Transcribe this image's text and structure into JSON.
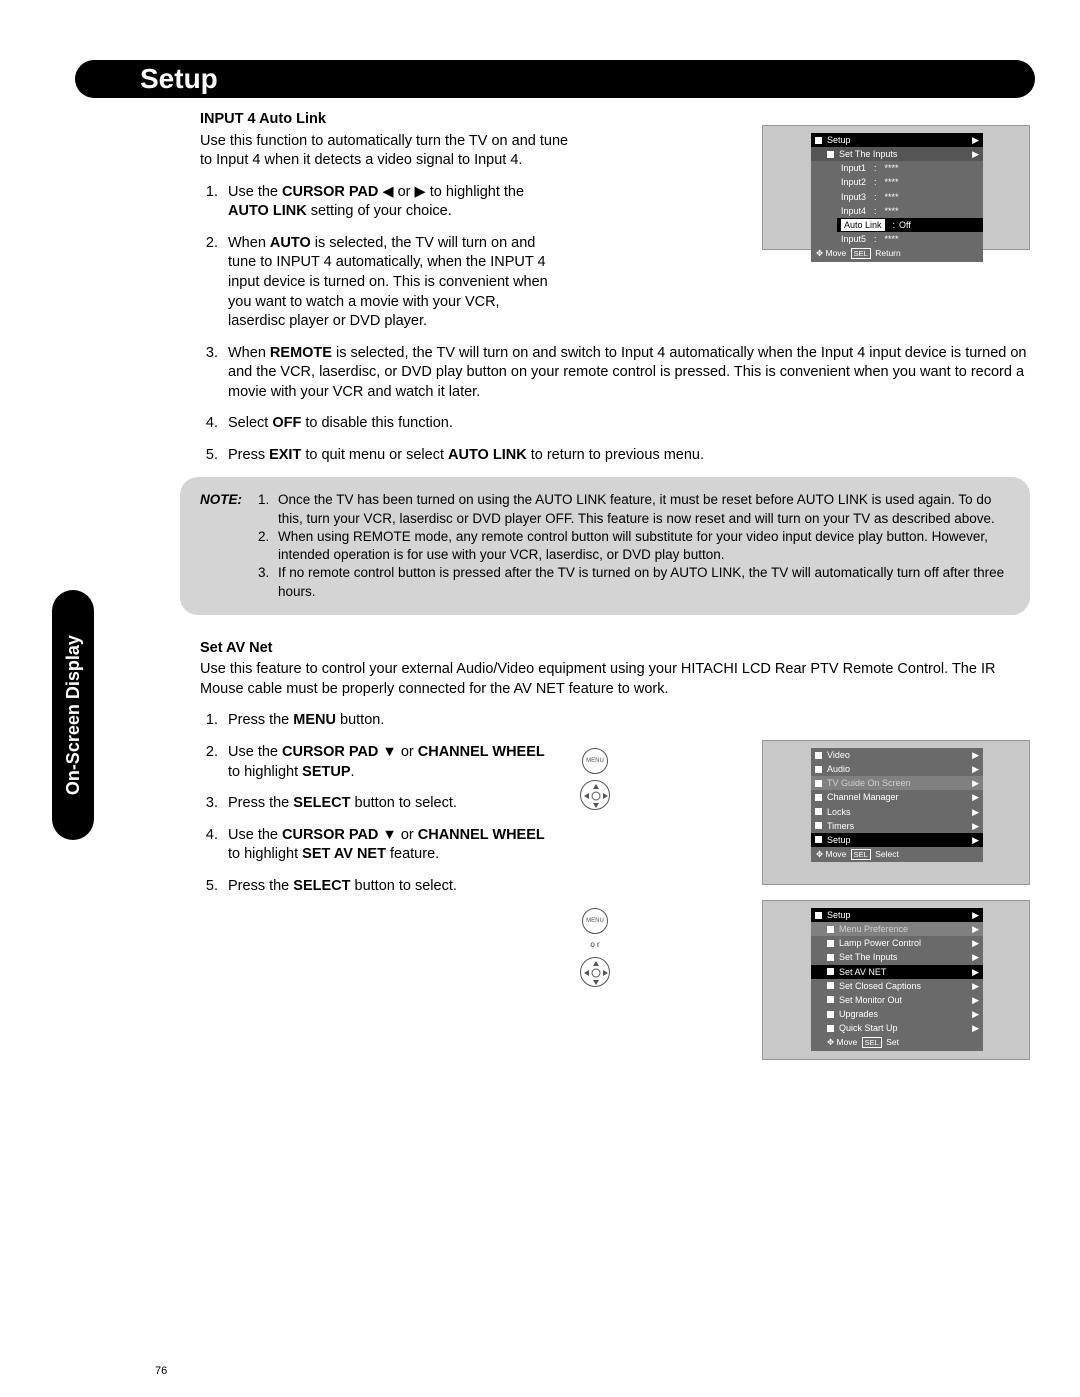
{
  "header": {
    "title": "Setup"
  },
  "sidetab": {
    "label": "On-Screen Display"
  },
  "page_number": "76",
  "section1": {
    "title": "INPUT 4 Auto Link",
    "intro": "Use this function to automatically turn the TV on and tune to Input 4 when it detects a video signal to Input 4.",
    "items": [
      {
        "n": "1.",
        "pre": "Use the ",
        "b1": "CURSOR PAD",
        "mid": " ◀ or ▶ to highlight the ",
        "b2": "AUTO LINK",
        "post": " setting of your choice."
      },
      {
        "n": "2.",
        "pre": "When ",
        "b1": "AUTO",
        "post": " is selected, the TV will turn on and tune to INPUT 4 automatically, when the INPUT 4 input device is turned on. This is convenient when you want to watch a movie with your VCR, laserdisc player or DVD player."
      },
      {
        "n": "3.",
        "pre": "When ",
        "b1": "REMOTE",
        "post": " is selected, the TV will turn on and switch to Input 4 automatically when the Input 4 input device is turned on and the VCR, laserdisc, or DVD play button on your remote control is pressed. This is convenient when you want to record a movie with your VCR and watch it later."
      },
      {
        "n": "4.",
        "pre": "Select ",
        "b1": "OFF",
        "post": " to disable this function."
      },
      {
        "n": "5.",
        "pre": "Press ",
        "b1": "EXIT",
        "mid": " to quit menu or select ",
        "b2": "AUTO LINK",
        "post": " to return to previous menu."
      }
    ]
  },
  "note": {
    "label": "NOTE:",
    "items": [
      {
        "n": "1.",
        "text": "Once the TV has been turned on using the AUTO LINK feature, it must be reset before AUTO LINK is used again. To do this, turn your VCR, laserdisc or DVD player OFF. This feature is now reset and will turn on your TV as described above."
      },
      {
        "n": "2.",
        "text": "When using REMOTE mode, any remote control button will substitute for your video input device play button. However, intended operation is for use with your VCR, laserdisc, or DVD play button."
      },
      {
        "n": "3.",
        "text": "If no remote control button is pressed after the TV is turned on by AUTO LINK, the TV will automatically turn off after three hours."
      }
    ]
  },
  "section2": {
    "title": "Set AV Net",
    "intro": "Use this feature to control your external Audio/Video equipment using your HITACHI LCD Rear PTV Remote Control.  The IR Mouse cable must be properly connected for the AV NET feature to work.",
    "items": [
      {
        "n": "1.",
        "pre": "Press the ",
        "b1": "MENU",
        "post": " button."
      },
      {
        "n": "2.",
        "pre": "Use the ",
        "b1": "CURSOR PAD",
        "mid": " ▼ or ",
        "b2": "CHANNEL WHEEL",
        "mid2": " to highlight ",
        "b3": "SETUP",
        "post": "."
      },
      {
        "n": "3.",
        "pre": "Press the ",
        "b1": "SELECT",
        "post": " button to select."
      },
      {
        "n": "4.",
        "pre": "Use the ",
        "b1": "CURSOR PAD",
        "mid": " ▼ or ",
        "b2": "CHANNEL WHEEL",
        "mid2": " to highlight ",
        "b3": "SET AV NET",
        "post": " feature."
      },
      {
        "n": "5.",
        "pre": "Press the ",
        "b1": "SELECT",
        "post": " button to select."
      }
    ]
  },
  "osd1": {
    "title": "Setup",
    "sub": "Set The Inputs",
    "rows": [
      {
        "l": "Input1",
        "v": "****"
      },
      {
        "l": "Input2",
        "v": "****"
      },
      {
        "l": "Input3",
        "v": "****"
      },
      {
        "l": "Input4",
        "v": "****"
      }
    ],
    "hl_label": "Auto Link",
    "hl_value": "Off",
    "row5": {
      "l": "Input5",
      "v": "****"
    },
    "hint_move": "Move",
    "hint_sel": "SEL",
    "hint_ret": "Return"
  },
  "osd2": {
    "rows": [
      "Video",
      "Audio",
      "TV Guide On Screen",
      "Channel Manager",
      "Locks",
      "Timers",
      "Setup"
    ],
    "hl_index": 2,
    "black_index": 6,
    "hint_move": "Move",
    "hint_sel": "SEL",
    "hint_act": "Select"
  },
  "osd3": {
    "title": "Setup",
    "rows": [
      "Menu Preference",
      "Lamp Power Control",
      "Set The Inputs",
      "Set AV NET",
      "Set Closed Captions",
      "Set Monitor Out",
      "Upgrades",
      "Quick Start Up"
    ],
    "hl_index": 0,
    "black_index": 3,
    "hint_move": "Move",
    "hint_sel": "SEL",
    "hint_act": "Set"
  },
  "or": "o r"
}
